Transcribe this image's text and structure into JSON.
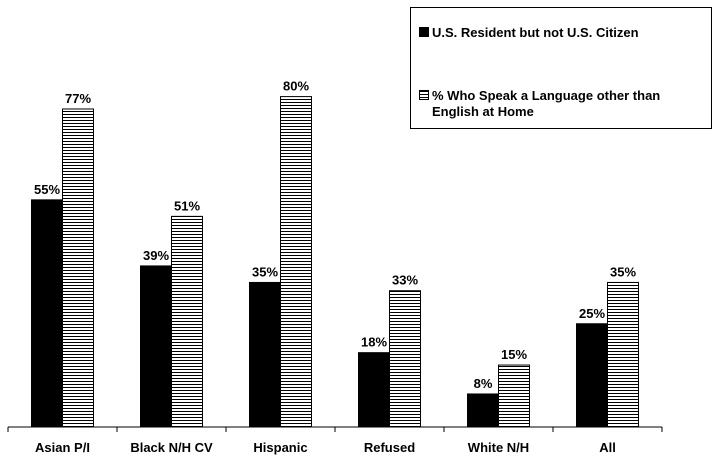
{
  "chart_data": {
    "type": "bar",
    "categories": [
      "Asian P/I",
      "Black N/H CV",
      "Hispanic",
      "Refused",
      "White N/H",
      "All"
    ],
    "series": [
      {
        "name": "U.S. Resident but not U.S. Citizen",
        "values": [
          55,
          39,
          35,
          18,
          8,
          25
        ],
        "labels": [
          "55%",
          "39%",
          "35%",
          "18%",
          "8%",
          "25%"
        ],
        "fill": "#000000"
      },
      {
        "name": "% Who Speak a Language other than English at Home",
        "values": [
          77,
          51,
          80,
          33,
          15,
          35
        ],
        "labels": [
          "77%",
          "51%",
          "80%",
          "33%",
          "15%",
          "35%"
        ],
        "fill": "striped"
      }
    ],
    "ylim": [
      0,
      100
    ],
    "grid": false,
    "legend": "top-right"
  },
  "legend": {
    "items": [
      {
        "label": "U.S. Resident but not U.S. Citizen"
      },
      {
        "label": "% Who Speak a Language other than English at Home"
      }
    ]
  }
}
